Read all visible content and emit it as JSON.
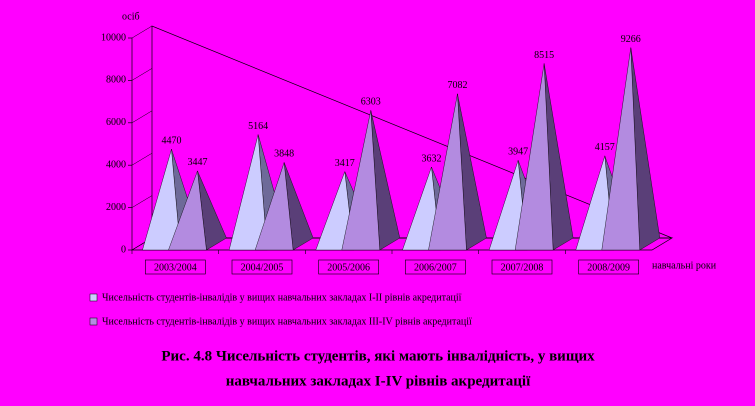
{
  "chart_data": {
    "type": "pyramid3d",
    "y_label": "осіб",
    "x_label": "навчальні роки",
    "categories": [
      "2003/2004",
      "2004/2005",
      "2005/2006",
      "2006/2007",
      "2007/2008",
      "2008/2009"
    ],
    "series": [
      {
        "name": "Чисельність студентів-інвалідів у вищих навчальних закладах I-II рівнів акредитації",
        "color": "#ccccff",
        "side_color": "#6e6a99",
        "values": [
          4470,
          5164,
          3417,
          3632,
          3947,
          4157
        ]
      },
      {
        "name": "Чисельність студентів-інвалідів у вищих навчальних закладах III-IV рівнів акредитації",
        "color": "#b38be0",
        "side_color": "#5a3f78",
        "values": [
          3447,
          3848,
          6303,
          7082,
          8515,
          9266
        ]
      }
    ],
    "ylim": [
      0,
      10000
    ],
    "yticks": [
      0,
      2000,
      4000,
      6000,
      8000,
      10000
    ],
    "grid": false,
    "legend": "bottom",
    "caption": [
      "Рис. 4.8  Чисельність студентів, які мають інвалідність, у вищих",
      "навчальних закладах I-IV рівнів акредитації"
    ]
  }
}
